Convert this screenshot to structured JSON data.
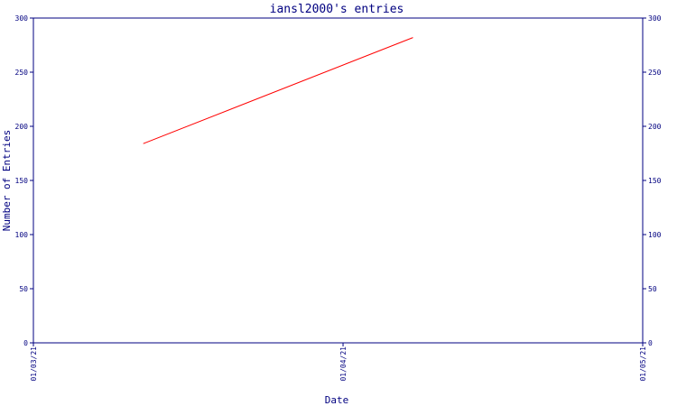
{
  "chart_data": {
    "type": "line",
    "title": "iansl2000's entries",
    "xlabel": "Date",
    "ylabel": "Number of Entries",
    "x_ticks": [
      "01/03/21",
      "01/04/21",
      "01/05/21"
    ],
    "y_ticks": [
      0,
      50,
      100,
      150,
      200,
      250,
      300
    ],
    "ylim": [
      0,
      300
    ],
    "grid": false,
    "legend": "none",
    "series": [
      {
        "color": "#ff0000",
        "points": [
          {
            "x": "2021-03-12",
            "y": 184
          },
          {
            "x": "2021-04-08",
            "y": 282
          }
        ]
      }
    ]
  },
  "colors": {
    "axis": "#000080",
    "line": "#ff0000",
    "background": "#ffffff"
  }
}
